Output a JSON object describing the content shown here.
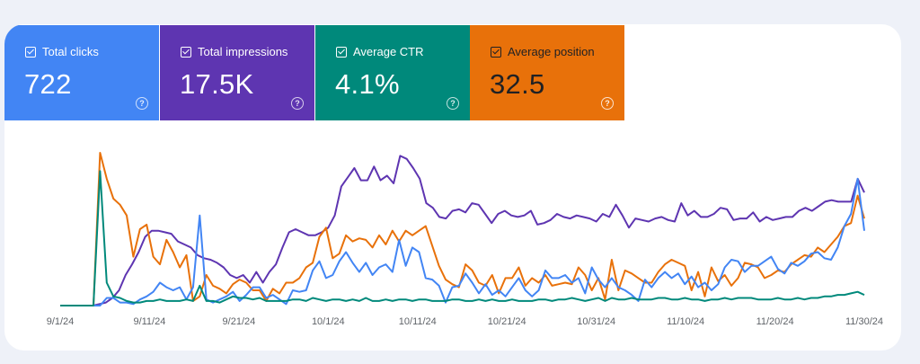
{
  "metrics": [
    {
      "id": "clicks",
      "label": "Total clicks",
      "value": "722",
      "color": "#4285f4"
    },
    {
      "id": "impr",
      "label": "Total impressions",
      "value": "17.5K",
      "color": "#5e35b1"
    },
    {
      "id": "ctr",
      "label": "Average CTR",
      "value": "4.1%",
      "color": "#00897b"
    },
    {
      "id": "pos",
      "label": "Average position",
      "value": "32.5",
      "color": "#e8710a"
    }
  ],
  "chart_data": {
    "type": "line",
    "x_tick_labels": [
      "9/1/24",
      "9/11/24",
      "9/21/24",
      "10/1/24",
      "10/11/24",
      "10/21/24",
      "10/31/24",
      "11/10/24",
      "11/20/24",
      "11/30/24"
    ],
    "grid": false,
    "legend": "none",
    "series": [
      {
        "color": "#5e35b1",
        "values": [
          0.0,
          0.0,
          0.0,
          0.0,
          0.0,
          0.0,
          0.01,
          0.02,
          0.05,
          0.1,
          0.2,
          0.27,
          0.35,
          0.45,
          0.49,
          0.49,
          0.48,
          0.47,
          0.42,
          0.4,
          0.38,
          0.33,
          0.31,
          0.3,
          0.28,
          0.25,
          0.2,
          0.18,
          0.2,
          0.15,
          0.22,
          0.15,
          0.22,
          0.27,
          0.38,
          0.48,
          0.5,
          0.48,
          0.46,
          0.46,
          0.48,
          0.51,
          0.59,
          0.78,
          0.84,
          0.9,
          0.82,
          0.82,
          0.91,
          0.82,
          0.85,
          0.8,
          0.98,
          0.96,
          0.9,
          0.83,
          0.67,
          0.64,
          0.58,
          0.57,
          0.62,
          0.63,
          0.61,
          0.67,
          0.66,
          0.6,
          0.54,
          0.6,
          0.62,
          0.59,
          0.58,
          0.59,
          0.62,
          0.53,
          0.54,
          0.56,
          0.6,
          0.58,
          0.57,
          0.59,
          0.58,
          0.57,
          0.55,
          0.6,
          0.58,
          0.66,
          0.59,
          0.51,
          0.57,
          0.56,
          0.55,
          0.57,
          0.58,
          0.56,
          0.55,
          0.67,
          0.59,
          0.62,
          0.58,
          0.58,
          0.6,
          0.64,
          0.63,
          0.56,
          0.57,
          0.57,
          0.61,
          0.55,
          0.58,
          0.56,
          0.57,
          0.58,
          0.58,
          0.62,
          0.64,
          0.62,
          0.65,
          0.68,
          0.69,
          0.68,
          0.68,
          0.68,
          0.83,
          0.74
        ]
      },
      {
        "color": "#e8710a",
        "values": [
          0.0,
          0.0,
          0.0,
          0.0,
          0.0,
          0.0,
          1.0,
          0.83,
          0.7,
          0.66,
          0.59,
          0.32,
          0.5,
          0.53,
          0.32,
          0.27,
          0.43,
          0.35,
          0.25,
          0.33,
          0.03,
          0.06,
          0.2,
          0.13,
          0.11,
          0.08,
          0.14,
          0.17,
          0.15,
          0.1,
          0.1,
          0.03,
          0.11,
          0.08,
          0.15,
          0.15,
          0.18,
          0.25,
          0.28,
          0.45,
          0.51,
          0.31,
          0.34,
          0.46,
          0.42,
          0.44,
          0.43,
          0.38,
          0.46,
          0.4,
          0.49,
          0.42,
          0.49,
          0.46,
          0.49,
          0.52,
          0.39,
          0.26,
          0.17,
          0.14,
          0.12,
          0.27,
          0.23,
          0.15,
          0.13,
          0.2,
          0.08,
          0.18,
          0.18,
          0.25,
          0.13,
          0.18,
          0.15,
          0.2,
          0.13,
          0.14,
          0.15,
          0.14,
          0.25,
          0.2,
          0.1,
          0.18,
          0.04,
          0.3,
          0.1,
          0.23,
          0.21,
          0.18,
          0.15,
          0.15,
          0.22,
          0.27,
          0.3,
          0.28,
          0.26,
          0.1,
          0.22,
          0.06,
          0.25,
          0.16,
          0.2,
          0.13,
          0.18,
          0.28,
          0.27,
          0.25,
          0.18,
          0.2,
          0.23,
          0.22,
          0.27,
          0.3,
          0.33,
          0.32,
          0.38,
          0.35,
          0.4,
          0.45,
          0.52,
          0.54,
          0.72,
          0.57
        ]
      },
      {
        "color": "#4285f4",
        "values": [
          0.0,
          0.0,
          0.0,
          0.0,
          0.0,
          0.0,
          0.0,
          0.05,
          0.05,
          0.02,
          0.02,
          0.01,
          0.04,
          0.06,
          0.09,
          0.15,
          0.12,
          0.1,
          0.12,
          0.04,
          0.12,
          0.59,
          0.04,
          0.02,
          0.04,
          0.06,
          0.09,
          0.03,
          0.07,
          0.12,
          0.12,
          0.05,
          0.07,
          0.04,
          0.01,
          0.1,
          0.09,
          0.1,
          0.23,
          0.29,
          0.18,
          0.2,
          0.29,
          0.35,
          0.28,
          0.22,
          0.28,
          0.2,
          0.25,
          0.27,
          0.22,
          0.43,
          0.26,
          0.38,
          0.35,
          0.18,
          0.17,
          0.13,
          0.02,
          0.12,
          0.13,
          0.21,
          0.15,
          0.08,
          0.14,
          0.07,
          0.1,
          0.06,
          0.12,
          0.18,
          0.1,
          0.06,
          0.1,
          0.23,
          0.18,
          0.18,
          0.2,
          0.15,
          0.18,
          0.08,
          0.25,
          0.17,
          0.12,
          0.18,
          0.12,
          0.1,
          0.07,
          0.03,
          0.17,
          0.12,
          0.18,
          0.22,
          0.18,
          0.21,
          0.14,
          0.19,
          0.12,
          0.15,
          0.1,
          0.14,
          0.25,
          0.3,
          0.29,
          0.22,
          0.26,
          0.26,
          0.29,
          0.32,
          0.24,
          0.21,
          0.28,
          0.26,
          0.29,
          0.34,
          0.35,
          0.31,
          0.3,
          0.38,
          0.52,
          0.6,
          0.83,
          0.49
        ]
      },
      {
        "color": "#00897b",
        "values": [
          0.0,
          0.0,
          0.0,
          0.0,
          0.0,
          0.0,
          0.88,
          0.15,
          0.06,
          0.05,
          0.03,
          0.02,
          0.02,
          0.03,
          0.03,
          0.04,
          0.03,
          0.03,
          0.03,
          0.04,
          0.03,
          0.13,
          0.03,
          0.03,
          0.02,
          0.04,
          0.06,
          0.05,
          0.05,
          0.04,
          0.05,
          0.03,
          0.03,
          0.03,
          0.03,
          0.04,
          0.04,
          0.03,
          0.05,
          0.04,
          0.03,
          0.04,
          0.04,
          0.03,
          0.04,
          0.03,
          0.05,
          0.03,
          0.03,
          0.04,
          0.03,
          0.04,
          0.04,
          0.03,
          0.04,
          0.04,
          0.03,
          0.03,
          0.03,
          0.04,
          0.04,
          0.03,
          0.03,
          0.04,
          0.03,
          0.04,
          0.03,
          0.03,
          0.04,
          0.03,
          0.03,
          0.03,
          0.04,
          0.04,
          0.03,
          0.04,
          0.04,
          0.05,
          0.04,
          0.03,
          0.04,
          0.05,
          0.03,
          0.05,
          0.04,
          0.04,
          0.05,
          0.04,
          0.04,
          0.04,
          0.05,
          0.05,
          0.04,
          0.04,
          0.05,
          0.04,
          0.04,
          0.03,
          0.04,
          0.04,
          0.05,
          0.04,
          0.05,
          0.05,
          0.05,
          0.04,
          0.04,
          0.04,
          0.05,
          0.04,
          0.04,
          0.05,
          0.04,
          0.05,
          0.05,
          0.06,
          0.06,
          0.07,
          0.07,
          0.08,
          0.09,
          0.07
        ]
      }
    ]
  }
}
